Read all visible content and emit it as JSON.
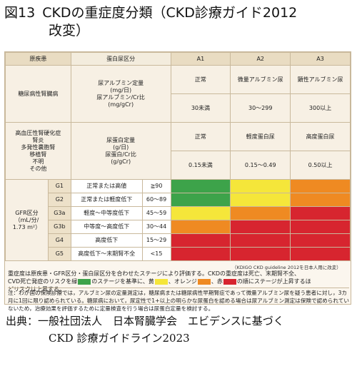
{
  "title": {
    "fig": "図13",
    "line1": "CKDの重症度分類（CKD診療ガイド2012",
    "line2": "改変）"
  },
  "table": {
    "header": {
      "cause": "原疾患",
      "protein": "蛋白尿区分",
      "a1": "A1",
      "a2": "A2",
      "a3": "A3"
    },
    "diabetes": {
      "cause": "糖尿病性腎臓病",
      "measure": "尿アルブミン定量\n(mg/日)\n尿アルブミン/Cr比\n(mg/gCr)",
      "a1_label": "正常",
      "a2_label": "微量アルブミン尿",
      "a3_label": "顕性アルブミン尿",
      "a1_range": "30未満",
      "a2_range": "30〜299",
      "a3_range": "300以上"
    },
    "other": {
      "cause": "高血圧性腎硬化症\n腎炎\n多発性嚢胞腎\n移植腎\n不明\nその他",
      "measure": "尿蛋白定量\n(g/日)\n尿蛋白/Cr比\n(g/gCr)",
      "a1_label": "正常",
      "a2_label": "軽度蛋白尿",
      "a3_label": "高度蛋白尿",
      "a1_range": "0.15未満",
      "a2_range": "0.15〜0.49",
      "a3_range": "0.50以上"
    },
    "gfr_label": "GFR区分\n（mL/分/\n1.73 m²）",
    "rows": [
      {
        "g": "G1",
        "desc": "正常または高値",
        "range": "≧90",
        "cells": [
          "green",
          "yellow",
          "orange"
        ]
      },
      {
        "g": "G2",
        "desc": "正常または軽度低下",
        "range": "60〜89",
        "cells": [
          "green",
          "yellow",
          "orange"
        ]
      },
      {
        "g": "G3a",
        "desc": "軽度〜中等度低下",
        "range": "45〜59",
        "cells": [
          "yellow",
          "orange",
          "red"
        ]
      },
      {
        "g": "G3b",
        "desc": "中等度〜高度低下",
        "range": "30〜44",
        "cells": [
          "orange",
          "red",
          "red"
        ]
      },
      {
        "g": "G4",
        "desc": "高度低下",
        "range": "15〜29",
        "cells": [
          "red",
          "red",
          "red"
        ]
      },
      {
        "g": "G5",
        "desc": "高度低下〜末期腎不全",
        "range": "<15",
        "cells": [
          "red",
          "red",
          "red"
        ]
      }
    ]
  },
  "colors": {
    "green": "#3da34a",
    "yellow": "#f5e63a",
    "orange": "#ef8a22",
    "red": "#d7252f"
  },
  "kdigo": "（KDIGO CKD guideline 2012を日本人用に改変）",
  "legend": {
    "p1": "重症度は原疾患・GFR区分・蛋白尿区分を合わせたステージにより評価する。CKDの重症度は死亡、末期腎不全、",
    "p2": "CVD死亡発症のリスクを緑",
    "p3": "のステージを基準に、黄",
    "p4": "、オレンジ",
    "p5": "、赤",
    "p6": "の順にステージが上昇するほ",
    "p7": "どリスクは上昇する。"
  },
  "note": "注：わが国の保険診療では，アルブミン尿の定量測定は，糖尿病または糖尿病性早期腎症であって微量アルブミン尿を疑う患者に対し，3カ月に1回に限り認められている。糖尿病において，尿定性で1+以上の明らかな尿蛋白を認める場合は尿アルブミン測定は保険で認められていないため，治療効果を評価するために定量検査を行う場合は尿蛋白定量を検討する。",
  "source": {
    "line1": "出典：一般社団法人　日本腎臓学会　エビデンスに基づく",
    "line2": "CKD 診療ガイドライン2023"
  }
}
